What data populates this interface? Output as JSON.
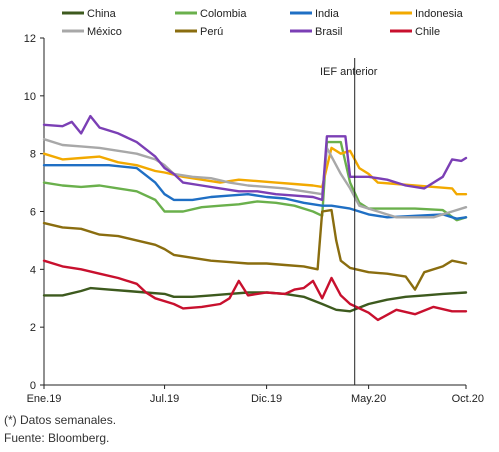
{
  "chart_data": {
    "type": "line",
    "ylim": [
      0,
      12
    ],
    "yticks": [
      0,
      2,
      4,
      6,
      8,
      10,
      12
    ],
    "xlim": [
      0,
      91
    ],
    "xticks": [
      {
        "label": "Ene.19",
        "x": 0
      },
      {
        "label": "Jul.19",
        "x": 26
      },
      {
        "label": "Dic.19",
        "x": 48
      },
      {
        "label": "May.20",
        "x": 70
      },
      {
        "label": "Oct.20",
        "x": 91
      }
    ],
    "annotation": {
      "label": "IEF anterior",
      "x": 67
    },
    "legend_position": "top",
    "series": [
      {
        "name": "China",
        "color": "#3d5a1e",
        "points": [
          [
            0,
            3.1
          ],
          [
            4,
            3.1
          ],
          [
            8,
            3.25
          ],
          [
            10,
            3.35
          ],
          [
            14,
            3.3
          ],
          [
            18,
            3.25
          ],
          [
            22,
            3.2
          ],
          [
            26,
            3.15
          ],
          [
            28,
            3.05
          ],
          [
            32,
            3.05
          ],
          [
            36,
            3.1
          ],
          [
            40,
            3.15
          ],
          [
            44,
            3.2
          ],
          [
            48,
            3.2
          ],
          [
            52,
            3.15
          ],
          [
            56,
            3.05
          ],
          [
            60,
            2.8
          ],
          [
            63,
            2.6
          ],
          [
            66,
            2.55
          ],
          [
            70,
            2.8
          ],
          [
            74,
            2.95
          ],
          [
            78,
            3.05
          ],
          [
            82,
            3.1
          ],
          [
            86,
            3.15
          ],
          [
            91,
            3.2
          ]
        ]
      },
      {
        "name": "Colombia",
        "color": "#6ab04c",
        "points": [
          [
            0,
            7.0
          ],
          [
            4,
            6.9
          ],
          [
            8,
            6.85
          ],
          [
            12,
            6.9
          ],
          [
            16,
            6.8
          ],
          [
            20,
            6.7
          ],
          [
            24,
            6.4
          ],
          [
            26,
            6.0
          ],
          [
            30,
            6.0
          ],
          [
            34,
            6.15
          ],
          [
            38,
            6.2
          ],
          [
            42,
            6.25
          ],
          [
            46,
            6.35
          ],
          [
            50,
            6.3
          ],
          [
            54,
            6.2
          ],
          [
            58,
            6.0
          ],
          [
            60,
            5.85
          ],
          [
            61,
            8.4
          ],
          [
            64,
            8.4
          ],
          [
            66,
            7.0
          ],
          [
            68,
            6.3
          ],
          [
            70,
            6.1
          ],
          [
            74,
            6.1
          ],
          [
            80,
            6.1
          ],
          [
            86,
            6.05
          ],
          [
            89,
            5.7
          ],
          [
            91,
            5.8
          ]
        ]
      },
      {
        "name": "India",
        "color": "#1f6fc4",
        "points": [
          [
            0,
            7.6
          ],
          [
            14,
            7.6
          ],
          [
            20,
            7.5
          ],
          [
            24,
            7.0
          ],
          [
            26,
            6.6
          ],
          [
            28,
            6.4
          ],
          [
            32,
            6.4
          ],
          [
            36,
            6.5
          ],
          [
            40,
            6.55
          ],
          [
            44,
            6.6
          ],
          [
            48,
            6.5
          ],
          [
            52,
            6.45
          ],
          [
            56,
            6.3
          ],
          [
            60,
            6.2
          ],
          [
            62,
            6.2
          ],
          [
            66,
            6.1
          ],
          [
            70,
            5.9
          ],
          [
            74,
            5.8
          ],
          [
            80,
            5.85
          ],
          [
            86,
            5.9
          ],
          [
            89,
            5.75
          ],
          [
            91,
            5.8
          ]
        ]
      },
      {
        "name": "Indonesia",
        "color": "#f2a900",
        "points": [
          [
            0,
            8.0
          ],
          [
            4,
            7.8
          ],
          [
            8,
            7.85
          ],
          [
            12,
            7.9
          ],
          [
            16,
            7.7
          ],
          [
            20,
            7.6
          ],
          [
            24,
            7.4
          ],
          [
            26,
            7.35
          ],
          [
            30,
            7.2
          ],
          [
            34,
            7.1
          ],
          [
            38,
            7.0
          ],
          [
            42,
            7.1
          ],
          [
            46,
            7.05
          ],
          [
            50,
            7.0
          ],
          [
            54,
            6.95
          ],
          [
            58,
            6.9
          ],
          [
            60,
            6.85
          ],
          [
            62,
            8.2
          ],
          [
            64,
            8.0
          ],
          [
            66,
            8.1
          ],
          [
            68,
            7.5
          ],
          [
            70,
            7.3
          ],
          [
            72,
            7.0
          ],
          [
            76,
            6.95
          ],
          [
            80,
            6.9
          ],
          [
            84,
            6.85
          ],
          [
            88,
            6.8
          ],
          [
            89,
            6.6
          ],
          [
            91,
            6.6
          ]
        ]
      },
      {
        "name": "México",
        "color": "#a8a8a8",
        "points": [
          [
            0,
            8.5
          ],
          [
            4,
            8.3
          ],
          [
            8,
            8.25
          ],
          [
            12,
            8.2
          ],
          [
            16,
            8.1
          ],
          [
            20,
            8.0
          ],
          [
            24,
            7.8
          ],
          [
            26,
            7.6
          ],
          [
            28,
            7.3
          ],
          [
            32,
            7.2
          ],
          [
            36,
            7.15
          ],
          [
            40,
            7.0
          ],
          [
            44,
            6.9
          ],
          [
            48,
            6.85
          ],
          [
            52,
            6.8
          ],
          [
            56,
            6.7
          ],
          [
            60,
            6.6
          ],
          [
            61,
            8.2
          ],
          [
            64,
            7.3
          ],
          [
            66,
            6.8
          ],
          [
            68,
            6.2
          ],
          [
            72,
            6.0
          ],
          [
            76,
            5.8
          ],
          [
            80,
            5.8
          ],
          [
            84,
            5.8
          ],
          [
            88,
            6.0
          ],
          [
            91,
            6.15
          ]
        ]
      },
      {
        "name": "Perú",
        "color": "#8a6d0f",
        "points": [
          [
            0,
            5.6
          ],
          [
            4,
            5.45
          ],
          [
            8,
            5.4
          ],
          [
            12,
            5.2
          ],
          [
            16,
            5.15
          ],
          [
            20,
            5.0
          ],
          [
            24,
            4.85
          ],
          [
            26,
            4.7
          ],
          [
            28,
            4.5
          ],
          [
            32,
            4.4
          ],
          [
            36,
            4.3
          ],
          [
            40,
            4.25
          ],
          [
            44,
            4.2
          ],
          [
            48,
            4.2
          ],
          [
            52,
            4.15
          ],
          [
            56,
            4.1
          ],
          [
            59,
            4.0
          ],
          [
            60,
            6.0
          ],
          [
            62,
            6.05
          ],
          [
            63,
            5.0
          ],
          [
            64,
            4.3
          ],
          [
            66,
            4.05
          ],
          [
            70,
            3.9
          ],
          [
            74,
            3.85
          ],
          [
            78,
            3.75
          ],
          [
            80,
            3.3
          ],
          [
            82,
            3.9
          ],
          [
            86,
            4.1
          ],
          [
            88,
            4.3
          ],
          [
            91,
            4.2
          ]
        ]
      },
      {
        "name": "Brasil",
        "color": "#7b3fb5",
        "points": [
          [
            0,
            9.0
          ],
          [
            4,
            8.95
          ],
          [
            6,
            9.1
          ],
          [
            8,
            8.7
          ],
          [
            10,
            9.3
          ],
          [
            12,
            8.9
          ],
          [
            16,
            8.7
          ],
          [
            20,
            8.4
          ],
          [
            24,
            7.9
          ],
          [
            26,
            7.5
          ],
          [
            28,
            7.3
          ],
          [
            30,
            7.0
          ],
          [
            34,
            6.9
          ],
          [
            38,
            6.8
          ],
          [
            42,
            6.7
          ],
          [
            46,
            6.7
          ],
          [
            50,
            6.6
          ],
          [
            54,
            6.55
          ],
          [
            58,
            6.5
          ],
          [
            60,
            6.4
          ],
          [
            61,
            8.6
          ],
          [
            65,
            8.6
          ],
          [
            66,
            7.2
          ],
          [
            70,
            7.2
          ],
          [
            74,
            7.1
          ],
          [
            78,
            6.9
          ],
          [
            82,
            6.8
          ],
          [
            86,
            7.2
          ],
          [
            88,
            7.8
          ],
          [
            90,
            7.75
          ],
          [
            91,
            7.85
          ]
        ]
      },
      {
        "name": "Chile",
        "color": "#c8102e",
        "points": [
          [
            0,
            4.3
          ],
          [
            4,
            4.1
          ],
          [
            8,
            4.0
          ],
          [
            12,
            3.85
          ],
          [
            16,
            3.7
          ],
          [
            20,
            3.5
          ],
          [
            22,
            3.2
          ],
          [
            24,
            3.0
          ],
          [
            28,
            2.8
          ],
          [
            30,
            2.65
          ],
          [
            34,
            2.7
          ],
          [
            38,
            2.8
          ],
          [
            40,
            3.0
          ],
          [
            42,
            3.6
          ],
          [
            44,
            3.1
          ],
          [
            48,
            3.2
          ],
          [
            52,
            3.15
          ],
          [
            54,
            3.3
          ],
          [
            56,
            3.35
          ],
          [
            58,
            3.6
          ],
          [
            60,
            3.0
          ],
          [
            62,
            3.7
          ],
          [
            64,
            3.1
          ],
          [
            66,
            2.8
          ],
          [
            70,
            2.5
          ],
          [
            72,
            2.25
          ],
          [
            76,
            2.6
          ],
          [
            80,
            2.45
          ],
          [
            84,
            2.7
          ],
          [
            88,
            2.55
          ],
          [
            91,
            2.55
          ]
        ]
      }
    ]
  },
  "notes": {
    "line1": "(*) Datos semanales.",
    "line2": "Fuente: Bloomberg."
  }
}
